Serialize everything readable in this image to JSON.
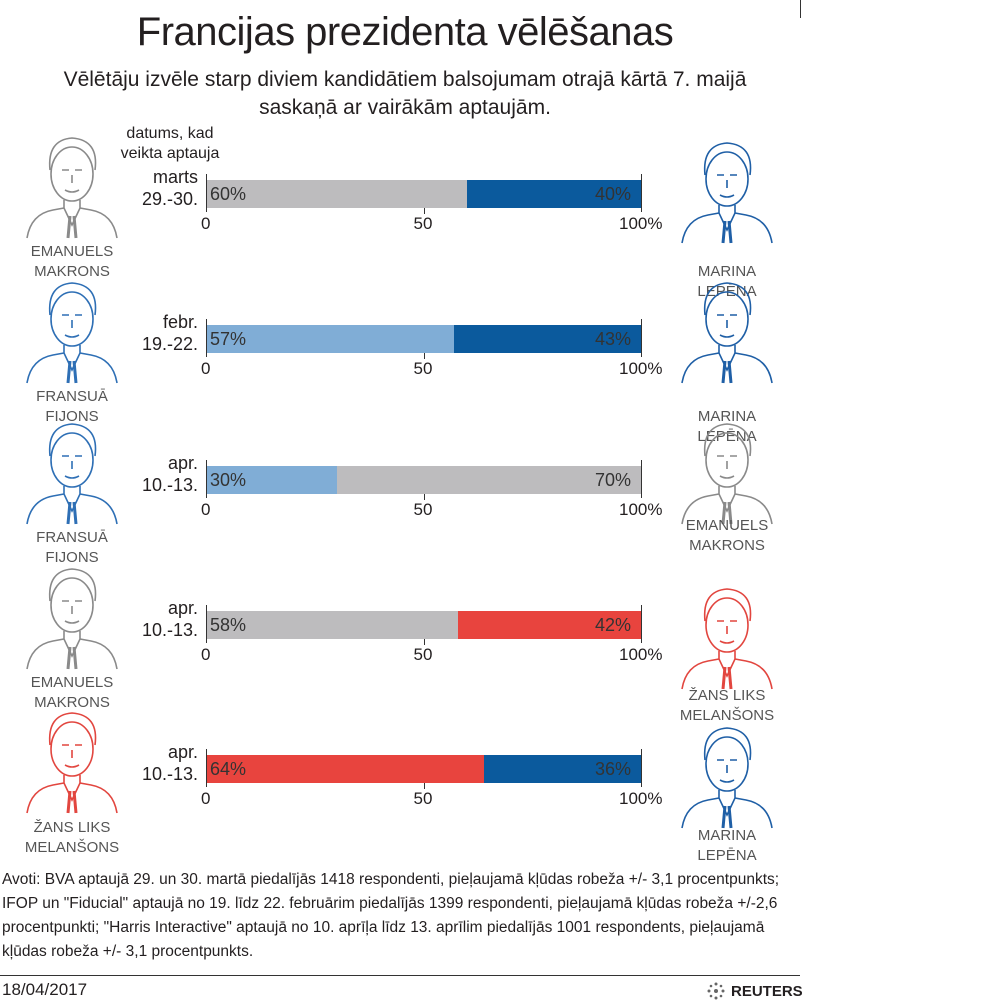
{
  "title": "Francijas prezidenta vēlēšanas",
  "subtitle_line1": "Vēlētāju izvēle starp diviem kandidātiem balsojumam otrajā kārtā 7. maijā",
  "subtitle_line2": "saskaņā ar vairākām aptaujām.",
  "date_header_line1": "datums, kad",
  "date_header_line2": "veikta aptauja",
  "chart_data": {
    "type": "bar",
    "orientation": "horizontal-stacked",
    "xlim": [
      0,
      100
    ],
    "tick_labels": [
      "0",
      "50",
      "100%"
    ],
    "rows": [
      {
        "date": [
          "marts",
          "29.-30."
        ],
        "left": {
          "name": [
            "EMANUELS",
            "MAKRONS"
          ],
          "value": 60,
          "label": "60%",
          "color": "#bdbcbe"
        },
        "right": {
          "name": [
            "MARINA",
            "LEPĒNA"
          ],
          "value": 40,
          "label": "40%",
          "color": "#0b5a9d"
        }
      },
      {
        "date": [
          "febr.",
          "19.-22."
        ],
        "left": {
          "name": [
            "FRANSUĀ",
            "FIJONS"
          ],
          "value": 57,
          "label": "57%",
          "color": "#80add6"
        },
        "right": {
          "name": [
            "MARINA",
            "LEPĒNA"
          ],
          "value": 43,
          "label": "43%",
          "color": "#0b5a9d"
        }
      },
      {
        "date": [
          "apr.",
          "10.-13."
        ],
        "left": {
          "name": [
            "FRANSUĀ",
            "FIJONS"
          ],
          "value": 30,
          "label": "30%",
          "color": "#80add6"
        },
        "right": {
          "name": [
            "EMANUELS",
            "MAKRONS"
          ],
          "value": 70,
          "label": "70%",
          "color": "#bdbcbe"
        }
      },
      {
        "date": [
          "apr.",
          "10.-13."
        ],
        "left": {
          "name": [
            "EMANUELS",
            "MAKRONS"
          ],
          "value": 58,
          "label": "58%",
          "color": "#bdbcbe"
        },
        "right": {
          "name": [
            "ŽANS LIKS",
            "MELANŠONS"
          ],
          "value": 42,
          "label": "42%",
          "color": "#e8443e"
        }
      },
      {
        "date": [
          "apr.",
          "10.-13."
        ],
        "left": {
          "name": [
            "ŽANS LIKS",
            "MELANŠONS"
          ],
          "value": 64,
          "label": "64%",
          "color": "#e8443e"
        },
        "right": {
          "name": [
            "MARINA",
            "LEPĒNA"
          ],
          "value": 36,
          "label": "36%",
          "color": "#0b5a9d"
        }
      }
    ]
  },
  "portrait_colors": {
    "EMANUELS MAKRONS": "#8a8a8a",
    "MARINA LEPĒNA": "#1f5fa6",
    "FRANSUĀ FIJONS": "#2e6fb5",
    "ŽANS LIKS MELANŠONS": "#e2463f"
  },
  "notes": "Avoti: BVA aptaujā 29. un 30. martā piedalījās 1418 respondenti, pieļaujamā kļūdas robeža +/- 3,1 procentpunkts; IFOP un \"Fiducial\" aptaujā no 19. līdz 22. februārim piedalījās 1399 respondenti, pieļaujamā kļūdas robeža +/-2,6 procentpunkti; \"Harris Interactive\" aptaujā no 10. aprīļa līdz 13. aprīlim piedalījās 1001 respondents, pieļaujamā kļūdas robeža +/- 3,1 procentpunkts.",
  "date": "18/04/2017",
  "logo": "REUTERS"
}
